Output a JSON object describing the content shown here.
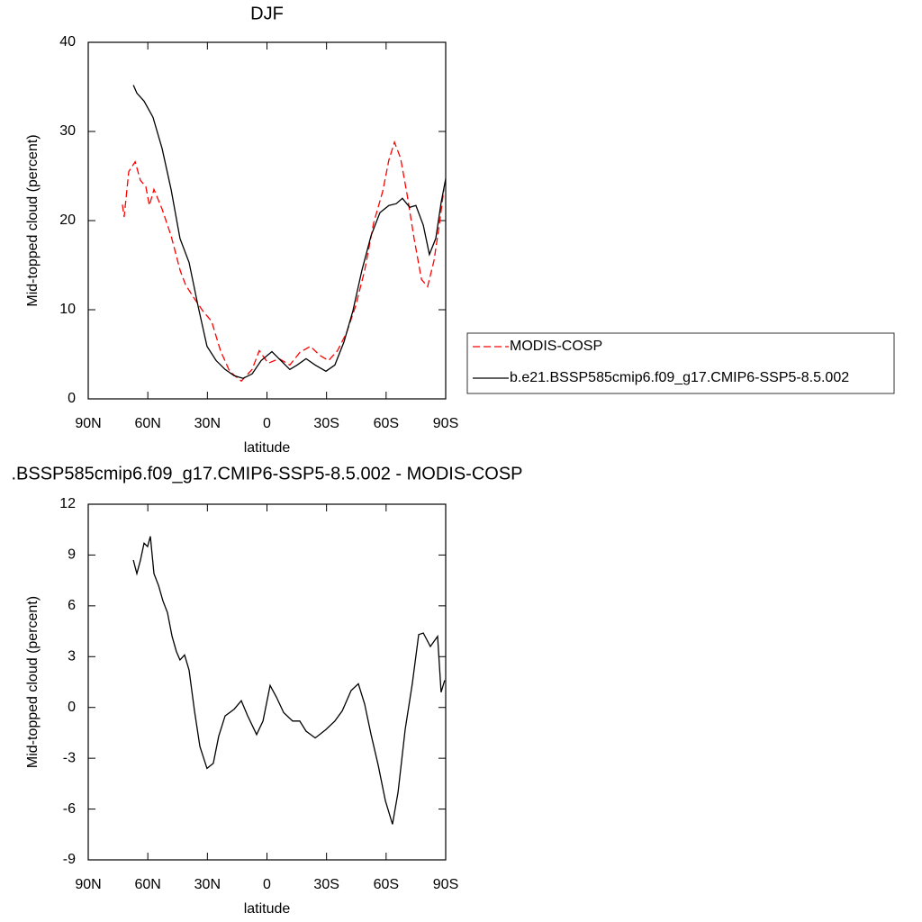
{
  "chart_data": [
    {
      "type": "line",
      "title": "DJF",
      "xlabel": "latitude",
      "ylabel": "Mid-topped cloud (percent)",
      "xlim": [
        90,
        -90
      ],
      "xticks": [
        {
          "value": 90,
          "label": "90N"
        },
        {
          "value": 60,
          "label": "60N"
        },
        {
          "value": 30,
          "label": "30N"
        },
        0,
        {
          "value": -30,
          "label": "30S"
        },
        {
          "value": -60,
          "label": "60S"
        },
        {
          "value": -90,
          "label": "90S"
        }
      ],
      "ylim": [
        0,
        40
      ],
      "yticks": [
        0,
        10,
        20,
        30,
        40
      ],
      "legend": "right",
      "series": [
        {
          "name": "MODIS-COSP",
          "color": "#ff0000",
          "dash": true,
          "x": [
            72.8,
            71.9,
            69.6,
            66.4,
            63.7,
            61.0,
            59.2,
            56.9,
            52.8,
            48.3,
            43.7,
            41.0,
            37.0,
            32.4,
            27.9,
            23.4,
            18.8,
            12.9,
            7.5,
            3.9,
            -0.6,
            -6.1,
            -11.5,
            -16.5,
            -21.9,
            -26.5,
            -31.0,
            -35.5,
            -40.1,
            -44.6,
            -49.2,
            -53.7,
            -58.3,
            -61.4,
            -64.2,
            -67.3,
            -70.5,
            -74.1,
            -77.8,
            -80.9,
            -84.1,
            -86.8,
            -89.1
          ],
          "values": [
            21.8,
            20.4,
            25.5,
            26.6,
            24.5,
            23.8,
            21.7,
            23.5,
            21.3,
            18.3,
            14.4,
            12.8,
            11.4,
            9.9,
            8.7,
            5.4,
            3.1,
            2.0,
            3.3,
            5.4,
            4.0,
            4.5,
            3.8,
            5.2,
            5.9,
            4.9,
            4.3,
            5.4,
            7.4,
            10.4,
            14.4,
            19.7,
            23.3,
            26.8,
            28.8,
            27.0,
            23.0,
            18.0,
            13.4,
            12.6,
            15.5,
            19.5,
            23.5
          ]
        },
        {
          "name": "b.e21.BSSP585cmip6.f09_g17.CMIP6-SSP5-8.5.002",
          "color": "#000000",
          "dash": false,
          "x": [
            67.3,
            65.5,
            61.9,
            57.4,
            52.8,
            48.3,
            43.8,
            39.2,
            34.7,
            30.2,
            25.6,
            21.1,
            16.5,
            12.0,
            7.5,
            2.9,
            -2.5,
            -7.0,
            -11.5,
            -15.2,
            -19.7,
            -24.3,
            -29.7,
            -34.2,
            -38.8,
            -43.3,
            -47.8,
            -52.4,
            -56.9,
            -61.4,
            -65.1,
            -68.2,
            -71.9,
            -75.0,
            -78.7,
            -81.8,
            -85.0,
            -87.7,
            -90.0
          ],
          "values": [
            35.2,
            34.3,
            33.4,
            31.6,
            28.1,
            23.5,
            18.0,
            15.3,
            10.4,
            5.9,
            4.3,
            3.3,
            2.6,
            2.3,
            2.8,
            4.3,
            5.3,
            4.3,
            3.3,
            3.8,
            4.5,
            3.8,
            3.1,
            3.8,
            6.4,
            9.9,
            14.4,
            18.3,
            20.9,
            21.7,
            21.9,
            22.5,
            21.5,
            21.7,
            19.5,
            16.2,
            18.0,
            22.0,
            24.7
          ]
        }
      ]
    },
    {
      "type": "line",
      "title": ".BSSP585cmip6.f09_g17.CMIP6-SSP5-8.5.002 - MODIS-COSP",
      "xlabel": "latitude",
      "ylabel": "Mid-topped cloud (percent)",
      "xlim": [
        90,
        -90
      ],
      "xticks": [
        {
          "value": 90,
          "label": "90N"
        },
        {
          "value": 60,
          "label": "60N"
        },
        {
          "value": 30,
          "label": "30N"
        },
        0,
        {
          "value": -30,
          "label": "30S"
        },
        {
          "value": -60,
          "label": "60S"
        },
        {
          "value": -90,
          "label": "90S"
        }
      ],
      "ylim": [
        -9,
        12
      ],
      "yticks": [
        -9,
        -6,
        -3,
        0,
        3,
        6,
        9,
        12
      ],
      "color": "#000000",
      "x": [
        67.3,
        65.5,
        63.7,
        61.9,
        60.1,
        58.7,
        56.9,
        54.6,
        52.4,
        50.1,
        47.8,
        45.6,
        43.8,
        41.5,
        39.2,
        36.5,
        33.8,
        30.2,
        27.0,
        24.3,
        21.1,
        16.5,
        12.9,
        9.7,
        5.2,
        2.0,
        -1.6,
        -4.8,
        -8.4,
        -12.9,
        -16.5,
        -19.7,
        -24.3,
        -29.7,
        -34.2,
        -37.9,
        -42.4,
        -46.0,
        -49.2,
        -52.4,
        -56.0,
        -59.6,
        -63.2,
        -66.0,
        -69.6,
        -73.2,
        -76.4,
        -78.7,
        -82.3,
        -85.9,
        -87.7,
        -89.5
      ],
      "values": [
        8.7,
        7.9,
        8.7,
        9.7,
        9.5,
        10.1,
        7.9,
        7.2,
        6.3,
        5.6,
        4.2,
        3.3,
        2.8,
        3.1,
        2.2,
        -0.2,
        -2.3,
        -3.6,
        -3.3,
        -1.7,
        -0.5,
        -0.1,
        0.4,
        -0.5,
        -1.6,
        -0.8,
        1.3,
        0.6,
        -0.3,
        -0.8,
        -0.8,
        -1.4,
        -1.8,
        -1.3,
        -0.8,
        -0.2,
        1.0,
        1.4,
        0.2,
        -1.6,
        -3.4,
        -5.5,
        -6.9,
        -5.0,
        -1.3,
        1.4,
        4.3,
        4.4,
        3.6,
        4.2,
        0.9,
        1.6
      ]
    }
  ]
}
